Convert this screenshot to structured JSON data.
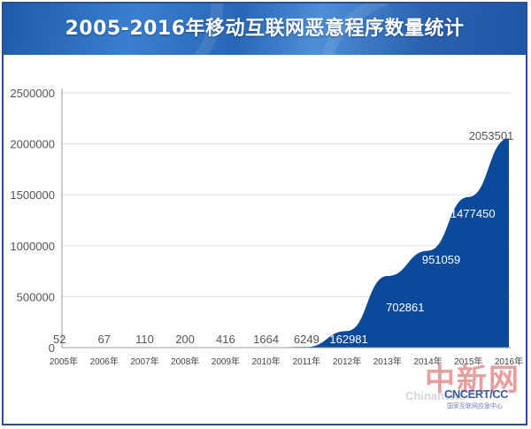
{
  "header": {
    "title": "2005-2016年移动互联网恶意程序数量统计"
  },
  "colors": {
    "header_blue": "#2867b7",
    "area_fill": "#0b4a9b",
    "frame": "#2a4f9a",
    "grid": "#e2e2e2",
    "watermark_red": "#c82828"
  },
  "watermark": {
    "mark": "中新网",
    "text": "Chinanews",
    "logo": "CNCERT/CC",
    "logo_sub": "国家互联网应急中心"
  },
  "chart_data": {
    "type": "area",
    "title": "2005-2016年移动互联网恶意程序数量统计",
    "xlabel": "",
    "ylabel": "",
    "categories": [
      "2005年",
      "2006年",
      "2007年",
      "2008年",
      "2009年",
      "2010年",
      "2011年",
      "2012年",
      "2013年",
      "2014年",
      "2015年",
      "2016年"
    ],
    "values": [
      52,
      67,
      110,
      200,
      416,
      1664,
      6249,
      162981,
      702861,
      951059,
      1477450,
      2053501
    ],
    "ylim": [
      0,
      2500000
    ],
    "yticks": [
      "0",
      "500000",
      "1000000",
      "1500000",
      "2000000",
      "2500000"
    ],
    "grid": true,
    "legend": null,
    "data_labels": [
      "52",
      "67",
      "110",
      "200",
      "416",
      "1664",
      "6249",
      "162981",
      "702861",
      "951059",
      "1477450",
      "2053501"
    ]
  }
}
